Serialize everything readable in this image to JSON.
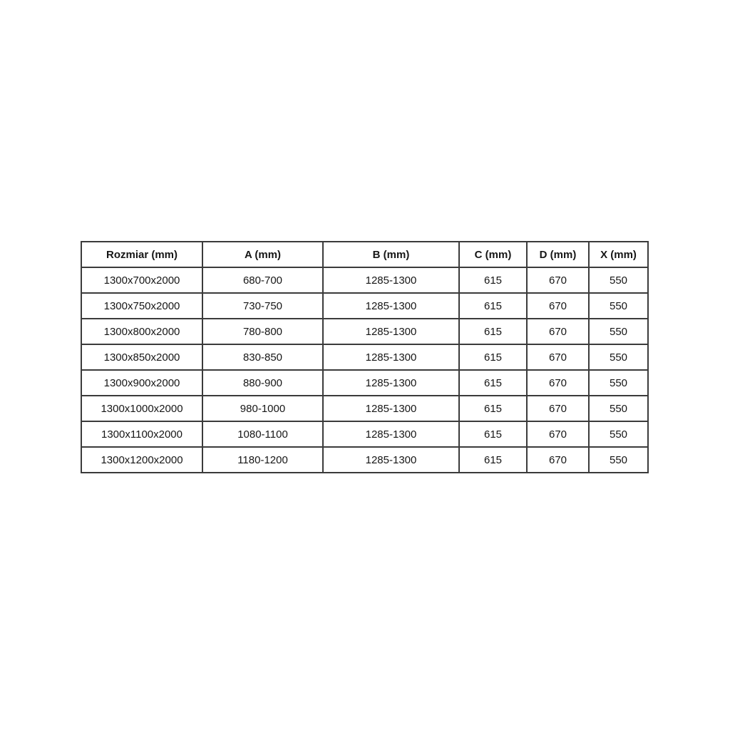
{
  "chart_data": {
    "type": "table",
    "columns": [
      "Rozmiar (mm)",
      "A (mm)",
      "B (mm)",
      "C (mm)",
      "D (mm)",
      "X (mm)"
    ],
    "rows": [
      [
        "1300x700x2000",
        "680-700",
        "1285-1300",
        "615",
        "670",
        "550"
      ],
      [
        "1300x750x2000",
        "730-750",
        "1285-1300",
        "615",
        "670",
        "550"
      ],
      [
        "1300x800x2000",
        "780-800",
        "1285-1300",
        "615",
        "670",
        "550"
      ],
      [
        "1300x850x2000",
        "830-850",
        "1285-1300",
        "615",
        "670",
        "550"
      ],
      [
        "1300x900x2000",
        "880-900",
        "1285-1300",
        "615",
        "670",
        "550"
      ],
      [
        "1300x1000x2000",
        "980-1000",
        "1285-1300",
        "615",
        "670",
        "550"
      ],
      [
        "1300x1100x2000",
        "1080-1100",
        "1285-1300",
        "615",
        "670",
        "550"
      ],
      [
        "1300x1200x2000",
        "1180-1200",
        "1285-1300",
        "615",
        "670",
        "550"
      ]
    ]
  },
  "colors": {
    "border": "#3b3b3b",
    "text": "#161616",
    "background": "#ffffff"
  }
}
